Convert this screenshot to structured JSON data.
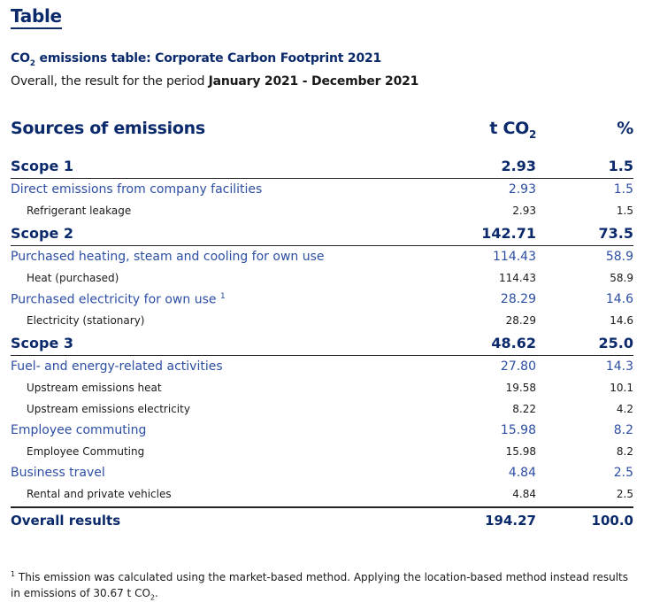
{
  "heading": "Table",
  "subtitle": {
    "pre": "CO",
    "sub": "2",
    "post": " emissions table: Corporate Carbon Footprint 2021"
  },
  "period": {
    "pre": "Overall, the result for the period ",
    "range": "January 2021 - December 2021"
  },
  "header": {
    "source": "Sources of emissions",
    "unit_pre": "t CO",
    "unit_sub": "2",
    "pct": "%"
  },
  "rows": [
    {
      "type": "scope",
      "label": "Scope 1",
      "t": "2.93",
      "pct": "1.5"
    },
    {
      "type": "cat",
      "label": "Direct emissions from company facilities",
      "t": "2.93",
      "pct": "1.5"
    },
    {
      "type": "sub",
      "label": "Refrigerant leakage",
      "t": "2.93",
      "pct": "1.5"
    },
    {
      "type": "scope",
      "label": "Scope 2",
      "t": "142.71",
      "pct": "73.5"
    },
    {
      "type": "cat",
      "label": "Purchased heating, steam and cooling for own use",
      "t": "114.43",
      "pct": "58.9"
    },
    {
      "type": "sub",
      "label": "Heat (purchased)",
      "t": "114.43",
      "pct": "58.9"
    },
    {
      "type": "cat",
      "label": "Purchased electricity for own use",
      "sup": "1",
      "t": "28.29",
      "pct": "14.6"
    },
    {
      "type": "sub",
      "label": "Electricity (stationary)",
      "t": "28.29",
      "pct": "14.6"
    },
    {
      "type": "scope",
      "label": "Scope 3",
      "t": "48.62",
      "pct": "25.0"
    },
    {
      "type": "cat",
      "label": "Fuel- and energy-related activities",
      "t": "27.80",
      "pct": "14.3"
    },
    {
      "type": "sub",
      "label": "Upstream emissions heat",
      "t": "19.58",
      "pct": "10.1"
    },
    {
      "type": "sub",
      "label": "Upstream emissions electricity",
      "t": "8.22",
      "pct": "4.2"
    },
    {
      "type": "cat",
      "label": "Employee commuting",
      "t": "15.98",
      "pct": "8.2"
    },
    {
      "type": "sub",
      "label": "Employee Commuting",
      "t": "15.98",
      "pct": "8.2"
    },
    {
      "type": "cat",
      "label": "Business travel",
      "t": "4.84",
      "pct": "2.5"
    },
    {
      "type": "sub",
      "label": "Rental and private vehicles",
      "t": "4.84",
      "pct": "2.5"
    }
  ],
  "total": {
    "label": "Overall results",
    "t": "194.27",
    "pct": "100.0"
  },
  "footnote": {
    "mark": "1",
    "text": " This emission was calculated using the market-based method. Applying the location-based method instead results in emissions of 30.67 t CO",
    "sub": "2",
    "end": "."
  }
}
